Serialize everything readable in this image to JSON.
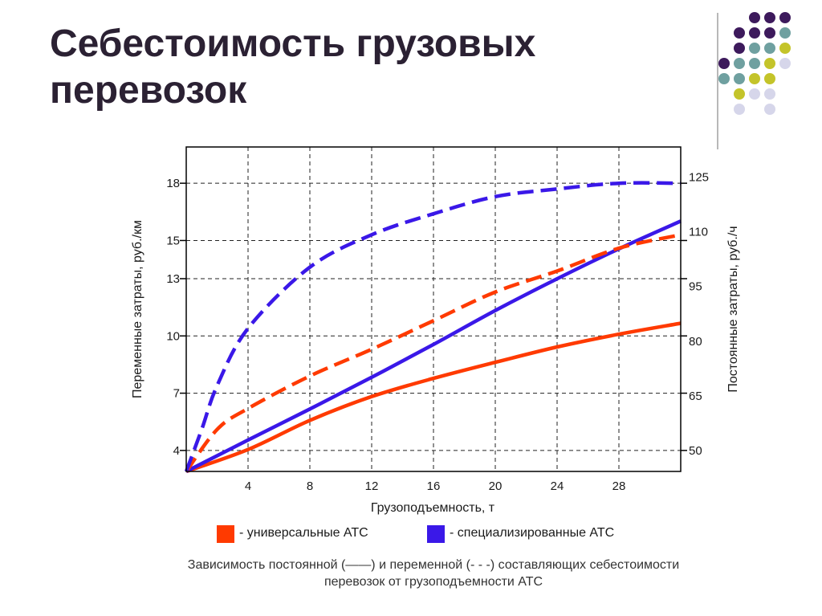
{
  "slide": {
    "title_line1": "Себестоимость грузовых",
    "title_line2": "перевозок",
    "caption_line1": "Зависимость постоянной (——) и переменной (- - -) составляющих себестоимости",
    "caption_line2": "перевозок от грузоподъемности АТС",
    "decor_colors": {
      "purple": "#3d1a5c",
      "teal": "#6fa0a0",
      "olive": "#c4c42a",
      "lavender": "#d6d6ea"
    }
  },
  "legend": [
    {
      "label": "- универсальные АТС",
      "color": "#ff3a00"
    },
    {
      "label": "- специализированные АТС",
      "color": "#3a18e8"
    }
  ],
  "chart_data": {
    "type": "line",
    "xlabel": "Грузоподъемность, т",
    "ylabel_left": "Переменные затраты, руб./км",
    "ylabel_right": "Постоянные затраты, руб./ч",
    "xlim": [
      0,
      32
    ],
    "x_ticks": [
      4,
      8,
      12,
      16,
      20,
      24,
      28
    ],
    "ylim_left": [
      2.9,
      19.9
    ],
    "y_ticks_left": [
      "4",
      "7",
      "10",
      "13",
      "15",
      "18"
    ],
    "ylim_right": [
      44.3,
      133.2
    ],
    "y_ticks_right": [
      "50",
      "65",
      "80",
      "95",
      "110",
      "125"
    ],
    "grid": true,
    "series": [
      {
        "name": "универсальные АТС",
        "style": "solid",
        "axis": "right",
        "color": "#ff3a00",
        "x": [
          0,
          4,
          8,
          12,
          16,
          20,
          24,
          28,
          32
        ],
        "y": [
          44.3,
          50.3,
          58.3,
          64.8,
          69.8,
          74.2,
          78.4,
          81.9,
          84.9
        ]
      },
      {
        "name": "специализированные АТС",
        "style": "solid",
        "axis": "right",
        "color": "#3a18e8",
        "x": [
          0,
          4,
          8,
          12,
          16,
          20,
          24,
          28,
          32
        ],
        "y": [
          44.3,
          52.9,
          61.4,
          70.1,
          79.1,
          88.4,
          97.1,
          105.3,
          112.9
        ]
      },
      {
        "name": "универсальные АТС",
        "style": "dashed",
        "axis": "left",
        "color": "#ff3a00",
        "x": [
          0,
          2,
          4,
          8,
          12,
          16,
          20,
          24,
          28,
          32
        ],
        "y": [
          2.9,
          5.1,
          6.2,
          7.9,
          9.3,
          10.8,
          12.3,
          13.4,
          14.6,
          15.3
        ]
      },
      {
        "name": "специализированные АТС",
        "style": "dashed",
        "axis": "left",
        "color": "#3a18e8",
        "x": [
          0,
          1,
          2,
          4,
          8,
          12,
          16,
          20,
          24,
          28,
          32
        ],
        "y": [
          2.9,
          5.1,
          7.4,
          10.4,
          13.6,
          15.3,
          16.4,
          17.3,
          17.7,
          18.0,
          18.0
        ]
      }
    ]
  }
}
